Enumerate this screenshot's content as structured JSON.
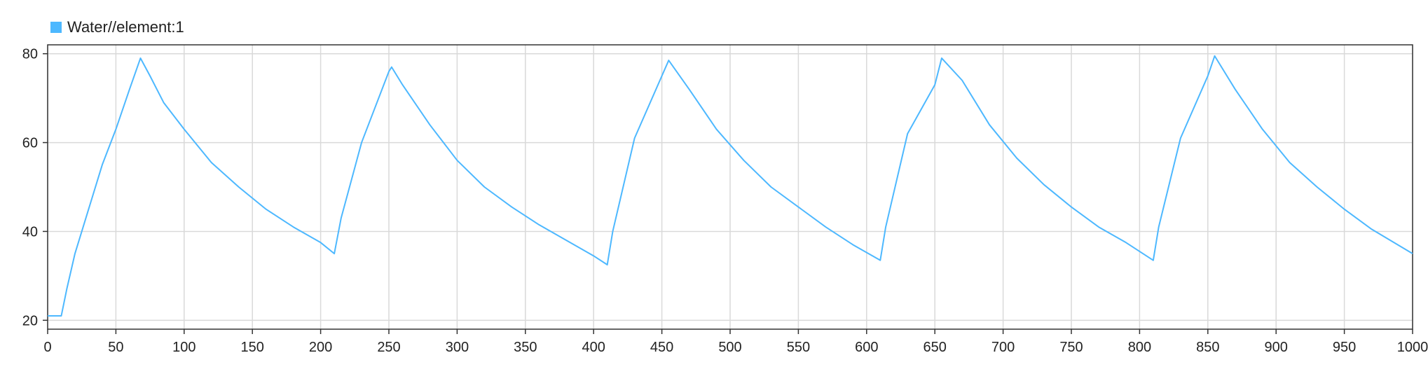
{
  "legend": {
    "items": [
      {
        "label": "Water//element:1",
        "color": "#4db8ff"
      }
    ]
  },
  "chart_data": {
    "type": "line",
    "title": "",
    "xlabel": "",
    "ylabel": "",
    "xlim": [
      0,
      1000
    ],
    "ylim": [
      18,
      82
    ],
    "xticks": [
      0,
      50,
      100,
      150,
      200,
      250,
      300,
      350,
      400,
      450,
      500,
      550,
      600,
      650,
      700,
      750,
      800,
      850,
      900,
      950,
      1000
    ],
    "yticks": [
      20,
      40,
      60,
      80
    ],
    "grid": true,
    "legend_position": "top-left",
    "series": [
      {
        "name": "Water//element:1",
        "color": "#4db8ff",
        "x": [
          0,
          10,
          14,
          20,
          30,
          40,
          50,
          60,
          68,
          75,
          85,
          100,
          120,
          140,
          160,
          180,
          200,
          210,
          215,
          230,
          250,
          252,
          260,
          280,
          300,
          320,
          340,
          360,
          380,
          400,
          410,
          414,
          430,
          450,
          455,
          470,
          490,
          510,
          530,
          550,
          570,
          590,
          610,
          614,
          630,
          650,
          655,
          670,
          690,
          710,
          730,
          750,
          770,
          790,
          810,
          814,
          830,
          850,
          855,
          870,
          890,
          910,
          930,
          950,
          970,
          1000
        ],
        "y": [
          21,
          21,
          27,
          35,
          45,
          55,
          63,
          72,
          79,
          75,
          69,
          63,
          55.5,
          50,
          45,
          41,
          37.5,
          35,
          43,
          60,
          76,
          77,
          73,
          64,
          56,
          50,
          45.5,
          41.5,
          38,
          34.5,
          32.5,
          40,
          61,
          75,
          78.5,
          72,
          63,
          56,
          50,
          45.5,
          41,
          37,
          33.5,
          41,
          62,
          73,
          79,
          74,
          64,
          56.5,
          50.5,
          45.5,
          41,
          37.5,
          33.5,
          41,
          61,
          75,
          79.5,
          72,
          63,
          55.5,
          50,
          45,
          40.5,
          35
        ]
      }
    ]
  }
}
